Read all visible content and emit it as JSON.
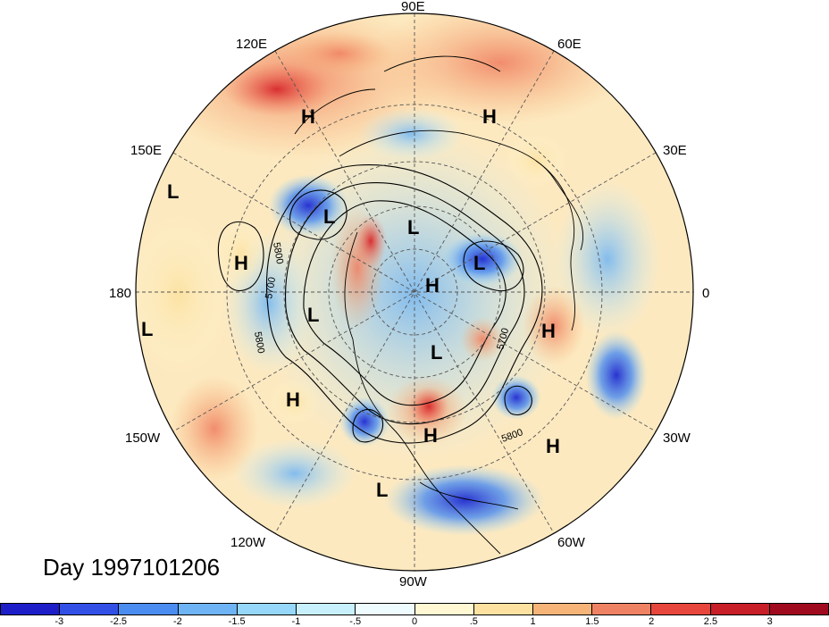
{
  "map": {
    "title": "Day 1997101206",
    "projection": "north-polar-stereographic",
    "longitude_labels": [
      {
        "text": "90E",
        "lon": 90
      },
      {
        "text": "60E",
        "lon": 60
      },
      {
        "text": "30E",
        "lon": 30
      },
      {
        "text": "0",
        "lon": 0
      },
      {
        "text": "30W",
        "lon": -30
      },
      {
        "text": "60W",
        "lon": -60
      },
      {
        "text": "90W",
        "lon": -90
      },
      {
        "text": "120W",
        "lon": -120
      },
      {
        "text": "150W",
        "lon": -150
      },
      {
        "text": "180",
        "lon": 180
      },
      {
        "text": "150E",
        "lon": 150
      },
      {
        "text": "120E",
        "lon": 120
      }
    ],
    "pressure_centers": [
      {
        "label": "H",
        "lon": 110,
        "lat": 50
      },
      {
        "label": "H",
        "lon": 70,
        "lat": 50
      },
      {
        "label": "L",
        "lon": 140,
        "lat": 35
      },
      {
        "label": "L",
        "lon": 135,
        "lat": 55
      },
      {
        "label": "H",
        "lon": 170,
        "lat": 45
      },
      {
        "label": "L",
        "lon": 100,
        "lat": 72
      },
      {
        "label": "L",
        "lon": 30,
        "lat": 68
      },
      {
        "label": "H",
        "lon": 80,
        "lat": 87
      },
      {
        "label": "L",
        "lon": -170,
        "lat": 58
      },
      {
        "label": "L",
        "lon": -175,
        "lat": 30
      },
      {
        "label": "H",
        "lon": -10,
        "lat": 58
      },
      {
        "label": "L",
        "lon": -60,
        "lat": 78
      },
      {
        "label": "H",
        "lon": -140,
        "lat": 40
      },
      {
        "label": "H",
        "lon": -80,
        "lat": 52
      },
      {
        "label": "H",
        "lon": -35,
        "lat": 38
      },
      {
        "label": "L",
        "lon": -100,
        "lat": 30
      }
    ],
    "contour_labels": [
      "5800",
      "5700",
      "5800",
      "5700",
      "5800"
    ]
  },
  "colorbar": {
    "ticks": [
      "-3",
      "-2.5",
      "-2",
      "-1.5",
      "-1",
      "-.5",
      "0",
      ".5",
      "1",
      "1.5",
      "2",
      "2.5",
      "3"
    ],
    "colors": [
      "#1e1ec8",
      "#3250e6",
      "#4b8cf0",
      "#6eb4f5",
      "#96d7fa",
      "#c8f0fc",
      "#eefcff",
      "#fff8d2",
      "#fce1a0",
      "#f7b478",
      "#f08264",
      "#e6463c",
      "#c81e28",
      "#a00a1e"
    ]
  }
}
